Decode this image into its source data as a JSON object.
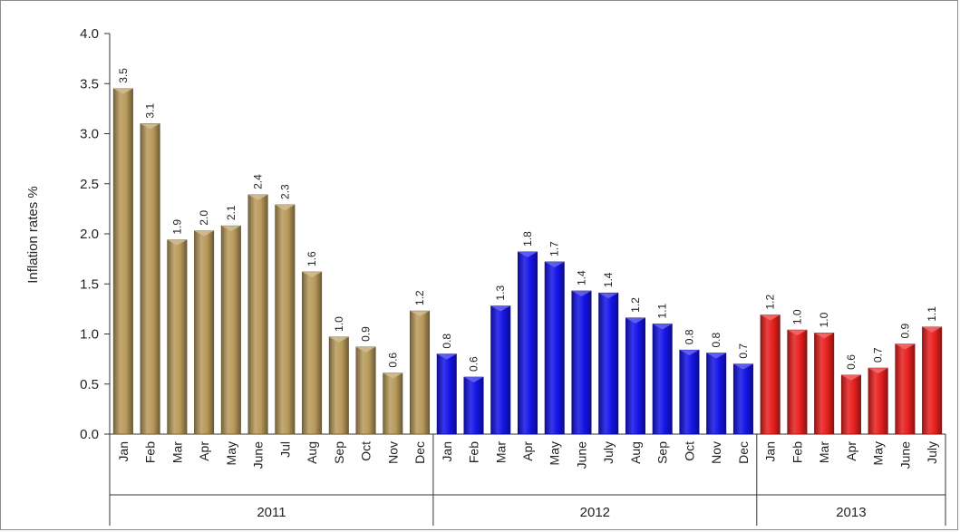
{
  "chart_data": {
    "type": "bar",
    "title": "",
    "ylabel": "Inflation rates %",
    "xlabel": "",
    "ylim": [
      0,
      4.0
    ],
    "yticks": [
      "0.0",
      "0.5",
      "1.0",
      "1.5",
      "2.0",
      "2.5",
      "3.0",
      "3.5",
      "4.0"
    ],
    "grid": false,
    "legend": "none",
    "groups": [
      {
        "name": "2011",
        "color": "#b89a5a",
        "categories": [
          "Jan",
          "Feb",
          "Mar",
          "Apr",
          "May",
          "June",
          "Jul",
          "Aug",
          "Sep",
          "Oct",
          "Nov",
          "Dec"
        ],
        "values": [
          3.45,
          3.1,
          1.94,
          2.03,
          2.08,
          2.39,
          2.29,
          1.62,
          0.97,
          0.87,
          0.61,
          1.23
        ],
        "labels": [
          "3.5",
          "3.1",
          "1.9",
          "2.0",
          "2.1",
          "2.4",
          "2.3",
          "1.6",
          "1.0",
          "0.9",
          "0.6",
          "1.2"
        ]
      },
      {
        "name": "2012",
        "color": "#1414e8",
        "categories": [
          "Jan",
          "Feb",
          "Mar",
          "Apr",
          "May",
          "June",
          "July",
          "Aug",
          "Sep",
          "Oct",
          "Nov",
          "Dec"
        ],
        "values": [
          0.8,
          0.57,
          1.28,
          1.82,
          1.72,
          1.43,
          1.41,
          1.16,
          1.1,
          0.84,
          0.81,
          0.7
        ],
        "labels": [
          "0.8",
          "0.6",
          "1.3",
          "1.8",
          "1.7",
          "1.4",
          "1.4",
          "1.2",
          "1.1",
          "0.8",
          "0.8",
          "0.7"
        ]
      },
      {
        "name": "2013",
        "color": "#e8201e",
        "categories": [
          "Jan",
          "Feb",
          "Mar",
          "Apr",
          "May",
          "June",
          "July"
        ],
        "values": [
          1.19,
          1.04,
          1.01,
          0.59,
          0.66,
          0.9,
          1.07
        ],
        "labels": [
          "1.2",
          "1.0",
          "1.0",
          "0.6",
          "0.7",
          "0.9",
          "1.1"
        ]
      }
    ]
  }
}
